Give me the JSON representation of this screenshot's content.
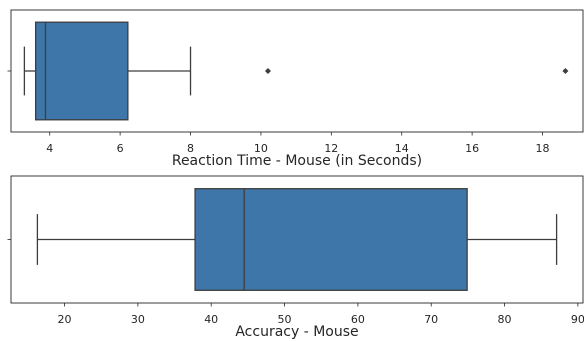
{
  "chart_data": [
    {
      "type": "boxplot",
      "orientation": "horizontal",
      "xlabel": "Reaction Time - Mouse (in Seconds)",
      "xlim": [
        2.9,
        19.15
      ],
      "xticks": [
        4,
        6,
        8,
        10,
        12,
        14,
        16,
        18
      ],
      "xtick_labels": [
        "4",
        "6",
        "8",
        "10",
        "12",
        "14",
        "16",
        "18"
      ],
      "box": {
        "whisker_low": 3.28,
        "q1": 3.6,
        "median": 3.88,
        "q3": 6.22,
        "whisker_high": 8.0,
        "outliers": [
          10.2,
          18.65
        ]
      },
      "box_color": "#3f76a9",
      "edge_color": "#3d3d3d"
    },
    {
      "type": "boxplot",
      "orientation": "horizontal",
      "xlabel": "Accuracy - Mouse",
      "xlim": [
        12.7,
        90.7
      ],
      "xticks": [
        20,
        30,
        40,
        50,
        60,
        70,
        80,
        90
      ],
      "xtick_labels": [
        "20",
        "30",
        "40",
        "50",
        "60",
        "70",
        "80",
        "90"
      ],
      "box": {
        "whisker_low": 16.3,
        "q1": 37.8,
        "median": 44.5,
        "q3": 74.9,
        "whisker_high": 87.1,
        "outliers": []
      },
      "box_color": "#3f76a9",
      "edge_color": "#3d3d3d"
    }
  ]
}
